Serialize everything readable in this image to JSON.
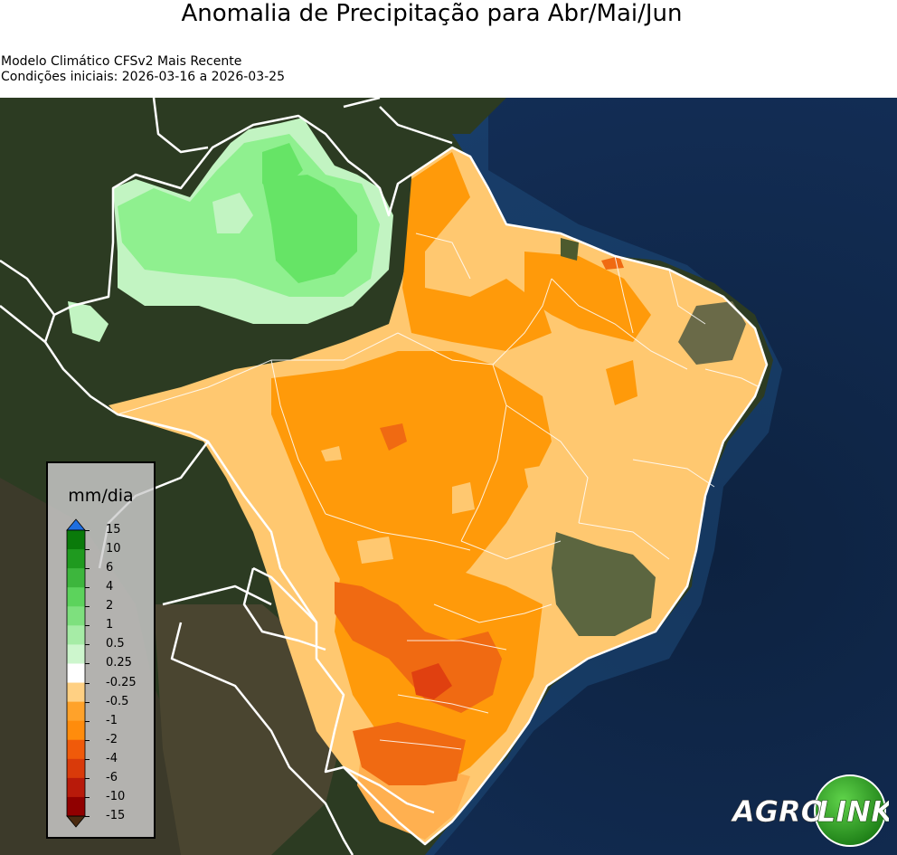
{
  "title": "Anomalia de Precipitação para Abr/Mai/Jun",
  "subtitle_model": "Modelo Climático CFSv2 Mais Recente",
  "subtitle_dates": "Condições iniciais: 2026-03-16 a 2026-03-25",
  "legend": {
    "unit": "mm/dia",
    "ticks": [
      "15",
      "10",
      "6",
      "4",
      "2",
      "1",
      "0.5",
      "0.25",
      "-0.25",
      "-0.5",
      "-1",
      "-2",
      "-4",
      "-6",
      "-10",
      "-15"
    ],
    "colors": [
      "#0a7a0a",
      "#1f9a1f",
      "#3db63d",
      "#5cd35c",
      "#7ee07e",
      "#a6eca6",
      "#cdf6cd",
      "#ffffff",
      "#ffd083",
      "#ffa22a",
      "#ff8c0c",
      "#f05a0a",
      "#d93a0a",
      "#b81a0a",
      "#900000"
    ],
    "extend_max_color": "#1f6fe0",
    "extend_min_color": "#4a2a10"
  },
  "logo": {
    "word1": "AGRO",
    "word2": "LINK"
  },
  "palette": {
    "ocean": "#0f2848",
    "land_dark": "#2a3a1e",
    "anomaly_light_orange": "#ffc870",
    "anomaly_orange": "#ff9a0a",
    "anomaly_red_orange": "#f06a12",
    "anomaly_red": "#e04010",
    "anomaly_light_green": "#c2f4c2",
    "anomaly_green": "#66e466"
  }
}
